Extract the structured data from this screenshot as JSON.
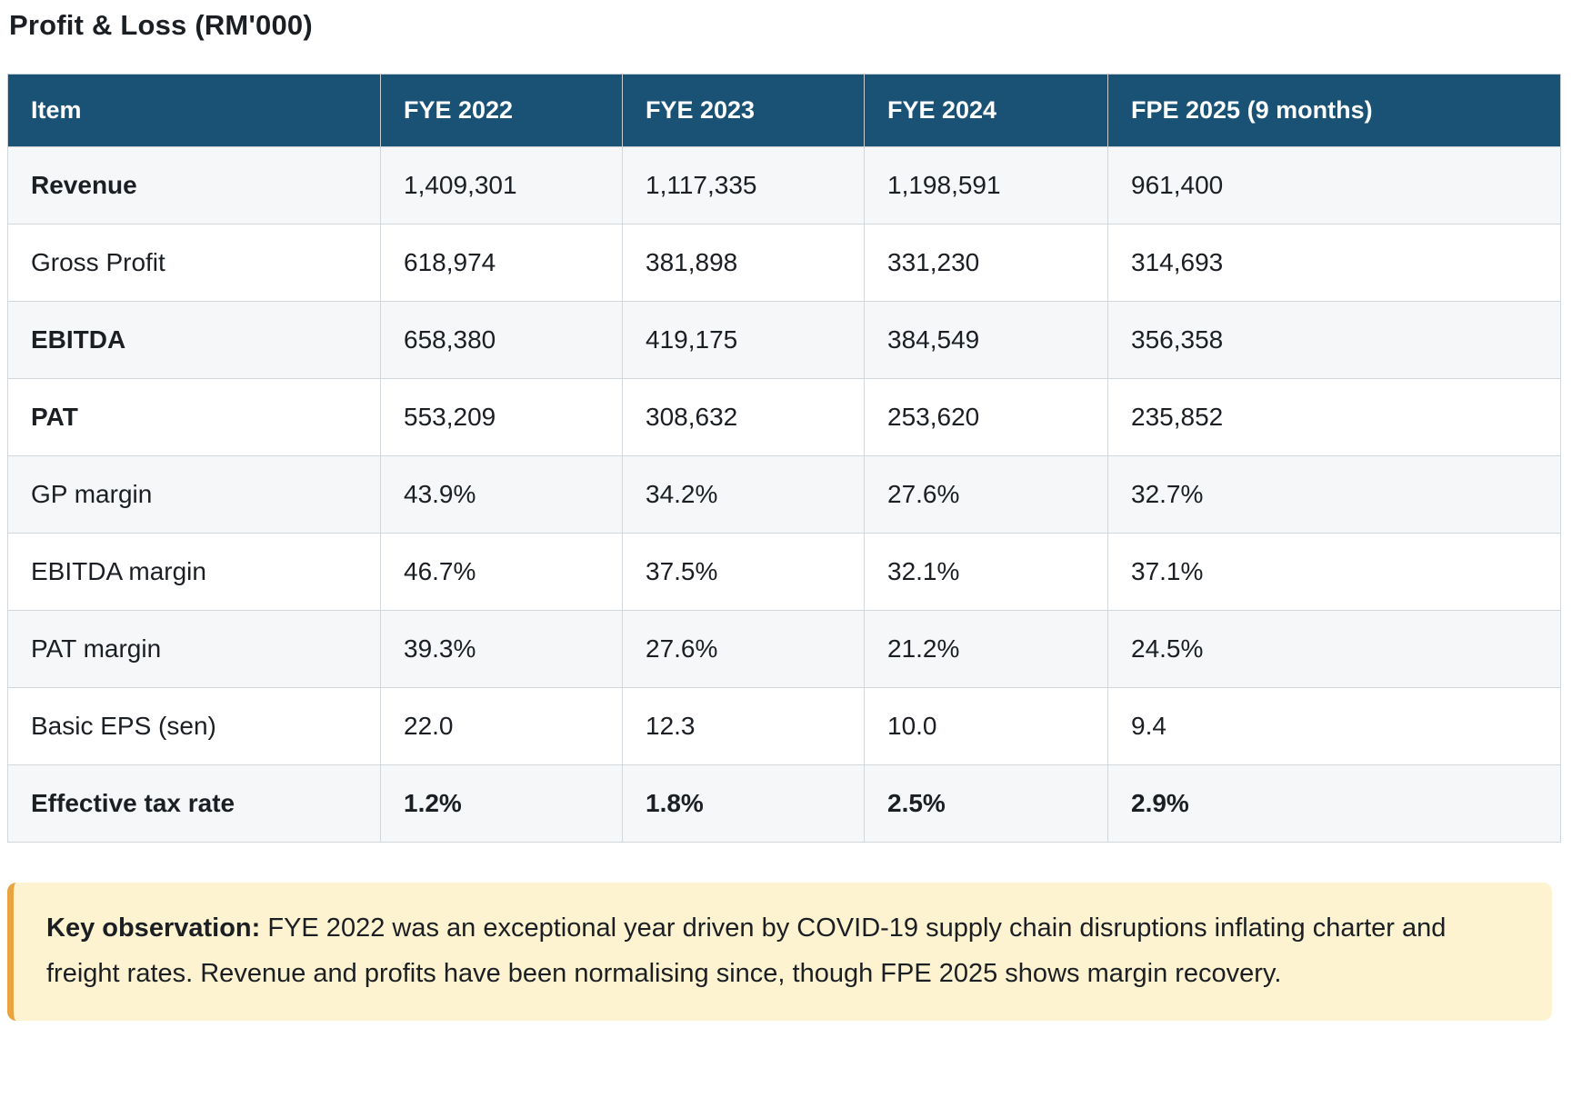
{
  "page": {
    "title": "Profit & Loss (RM'000)"
  },
  "colors": {
    "header_bg": "#1a5276",
    "header_text": "#ffffff",
    "row_stripe": "#f5f7f9",
    "cell_border": "#d2d7dc",
    "callout_bg": "#fdf3d0",
    "callout_accent": "#eaa43f",
    "text": "#1b1f24"
  },
  "table": {
    "columns": [
      "Item",
      "FYE 2022",
      "FYE 2023",
      "FYE 2024",
      "FPE 2025 (9 months)"
    ],
    "rows": [
      {
        "item": "Revenue",
        "values": [
          "1,409,301",
          "1,117,335",
          "1,198,591",
          "961,400"
        ],
        "bold_item": true,
        "bold_values": false,
        "striped": true
      },
      {
        "item": "Gross Profit",
        "values": [
          "618,974",
          "381,898",
          "331,230",
          "314,693"
        ],
        "bold_item": false,
        "bold_values": false,
        "striped": false
      },
      {
        "item": "EBITDA",
        "values": [
          "658,380",
          "419,175",
          "384,549",
          "356,358"
        ],
        "bold_item": true,
        "bold_values": false,
        "striped": true
      },
      {
        "item": "PAT",
        "values": [
          "553,209",
          "308,632",
          "253,620",
          "235,852"
        ],
        "bold_item": true,
        "bold_values": false,
        "striped": false
      },
      {
        "item": "GP margin",
        "values": [
          "43.9%",
          "34.2%",
          "27.6%",
          "32.7%"
        ],
        "bold_item": false,
        "bold_values": false,
        "striped": true
      },
      {
        "item": "EBITDA margin",
        "values": [
          "46.7%",
          "37.5%",
          "32.1%",
          "37.1%"
        ],
        "bold_item": false,
        "bold_values": false,
        "striped": false
      },
      {
        "item": "PAT margin",
        "values": [
          "39.3%",
          "27.6%",
          "21.2%",
          "24.5%"
        ],
        "bold_item": false,
        "bold_values": false,
        "striped": true
      },
      {
        "item": "Basic EPS (sen)",
        "values": [
          "22.0",
          "12.3",
          "10.0",
          "9.4"
        ],
        "bold_item": false,
        "bold_values": false,
        "striped": false
      },
      {
        "item": "Effective tax rate",
        "values": [
          "1.2%",
          "1.8%",
          "2.5%",
          "2.9%"
        ],
        "bold_item": true,
        "bold_values": true,
        "striped": true
      }
    ]
  },
  "callout": {
    "label": "Key observation:",
    "text": " FYE 2022 was an exceptional year driven by COVID-19 supply chain disruptions inflating charter and freight rates. Revenue and profits have been normalising since, though FPE 2025 shows margin recovery."
  }
}
